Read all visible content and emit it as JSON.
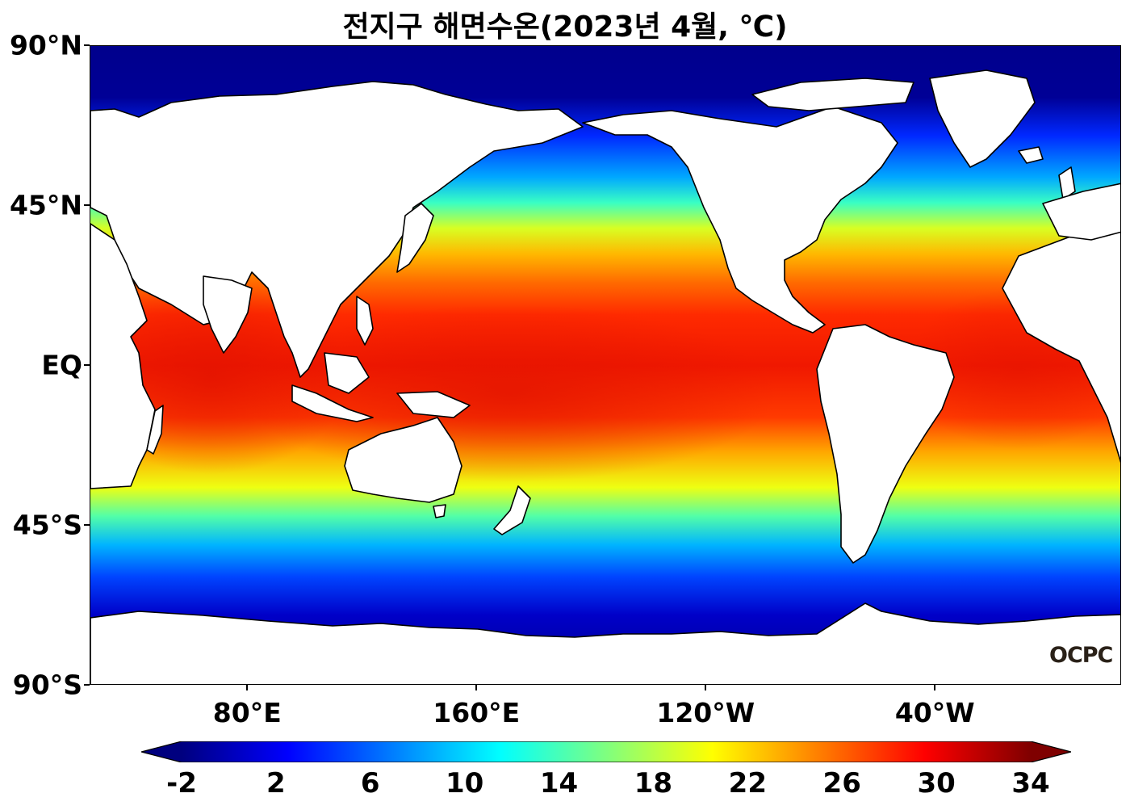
{
  "title": "전지구 해면수온(2023년 4월, ℃)",
  "axes": {
    "lat_labels": [
      {
        "text": "90°N",
        "lat": 90
      },
      {
        "text": "45°N",
        "lat": 45
      },
      {
        "text": "EQ",
        "lat": 0
      },
      {
        "text": "45°S",
        "lat": -45
      },
      {
        "text": "90°S",
        "lat": -90
      }
    ],
    "lon_labels": [
      {
        "text": "80°E",
        "lon": 80
      },
      {
        "text": "160°E",
        "lon": 160
      },
      {
        "text": "120°W",
        "lon": 240
      },
      {
        "text": "40°W",
        "lon": 320
      }
    ],
    "lon_range": [
      25,
      385
    ],
    "lat_range": [
      -90,
      90
    ]
  },
  "colorbar": {
    "ticks": [
      "-2",
      "2",
      "6",
      "10",
      "14",
      "18",
      "22",
      "26",
      "30",
      "34"
    ],
    "range": [
      -2,
      34
    ],
    "colors": [
      "#00007f",
      "#0000ff",
      "#007fff",
      "#00ffff",
      "#7fff7f",
      "#ffff00",
      "#ff7f00",
      "#ff0000",
      "#7f0000"
    ],
    "extend": "both"
  },
  "logo": "OCPC"
}
